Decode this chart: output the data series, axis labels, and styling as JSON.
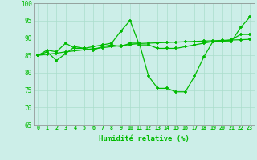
{
  "xlabel": "Humidité relative (%)",
  "xlim": [
    -0.5,
    23.5
  ],
  "ylim": [
    65,
    100
  ],
  "yticks": [
    65,
    70,
    75,
    80,
    85,
    90,
    95,
    100
  ],
  "xticks": [
    0,
    1,
    2,
    3,
    4,
    5,
    6,
    7,
    8,
    9,
    10,
    11,
    12,
    13,
    14,
    15,
    16,
    17,
    18,
    19,
    20,
    21,
    22,
    23
  ],
  "bg_color": "#cceee8",
  "grid_color": "#aaddcc",
  "line_color": "#00bb00",
  "line1": [
    85,
    85.3,
    85.6,
    86.0,
    86.3,
    86.6,
    86.9,
    87.2,
    87.5,
    87.8,
    88.1,
    88.4,
    88.5,
    88.6,
    88.7,
    88.8,
    88.9,
    89.0,
    89.1,
    89.2,
    89.3,
    89.4,
    89.5,
    89.6
  ],
  "line2": [
    85,
    86,
    83.5,
    85.5,
    87.5,
    87,
    86.5,
    87.5,
    88,
    87.5,
    88.5,
    88.5,
    79,
    75.5,
    75.5,
    74.5,
    74.5,
    79,
    84.5,
    89,
    89,
    89,
    93,
    96
  ],
  "line3": [
    85,
    86.5,
    86,
    88.5,
    87,
    87,
    87.5,
    88,
    88.5,
    92,
    95,
    88,
    88,
    87,
    87,
    87,
    87.5,
    88,
    88.5,
    89,
    89,
    89.5,
    91,
    91
  ]
}
